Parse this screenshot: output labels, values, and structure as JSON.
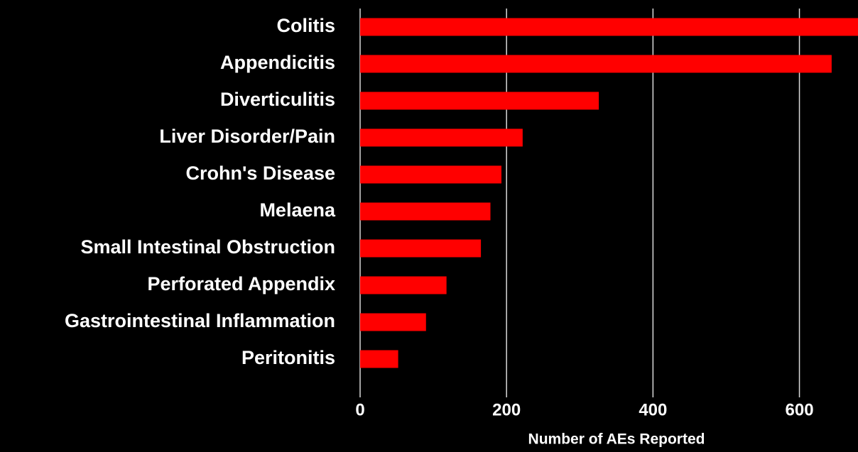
{
  "chart_data": {
    "type": "bar",
    "orientation": "horizontal",
    "categories": [
      "Colitis",
      "Appendicitis",
      "Diverticulitis",
      "Liver Disorder/Pain",
      "Crohn's Disease",
      "Melaena",
      "Small Intestinal Obstruction",
      "Perforated Appendix",
      "Gastrointestinal Inflammation",
      "Peritonitis"
    ],
    "values": [
      680,
      644,
      326,
      222,
      193,
      178,
      165,
      118,
      90,
      52
    ],
    "color": "#ff0000",
    "xlabel": "Number of AEs Reported",
    "xlim": [
      0,
      680
    ],
    "xticks": [
      0,
      200,
      400,
      600
    ],
    "grid": true
  }
}
